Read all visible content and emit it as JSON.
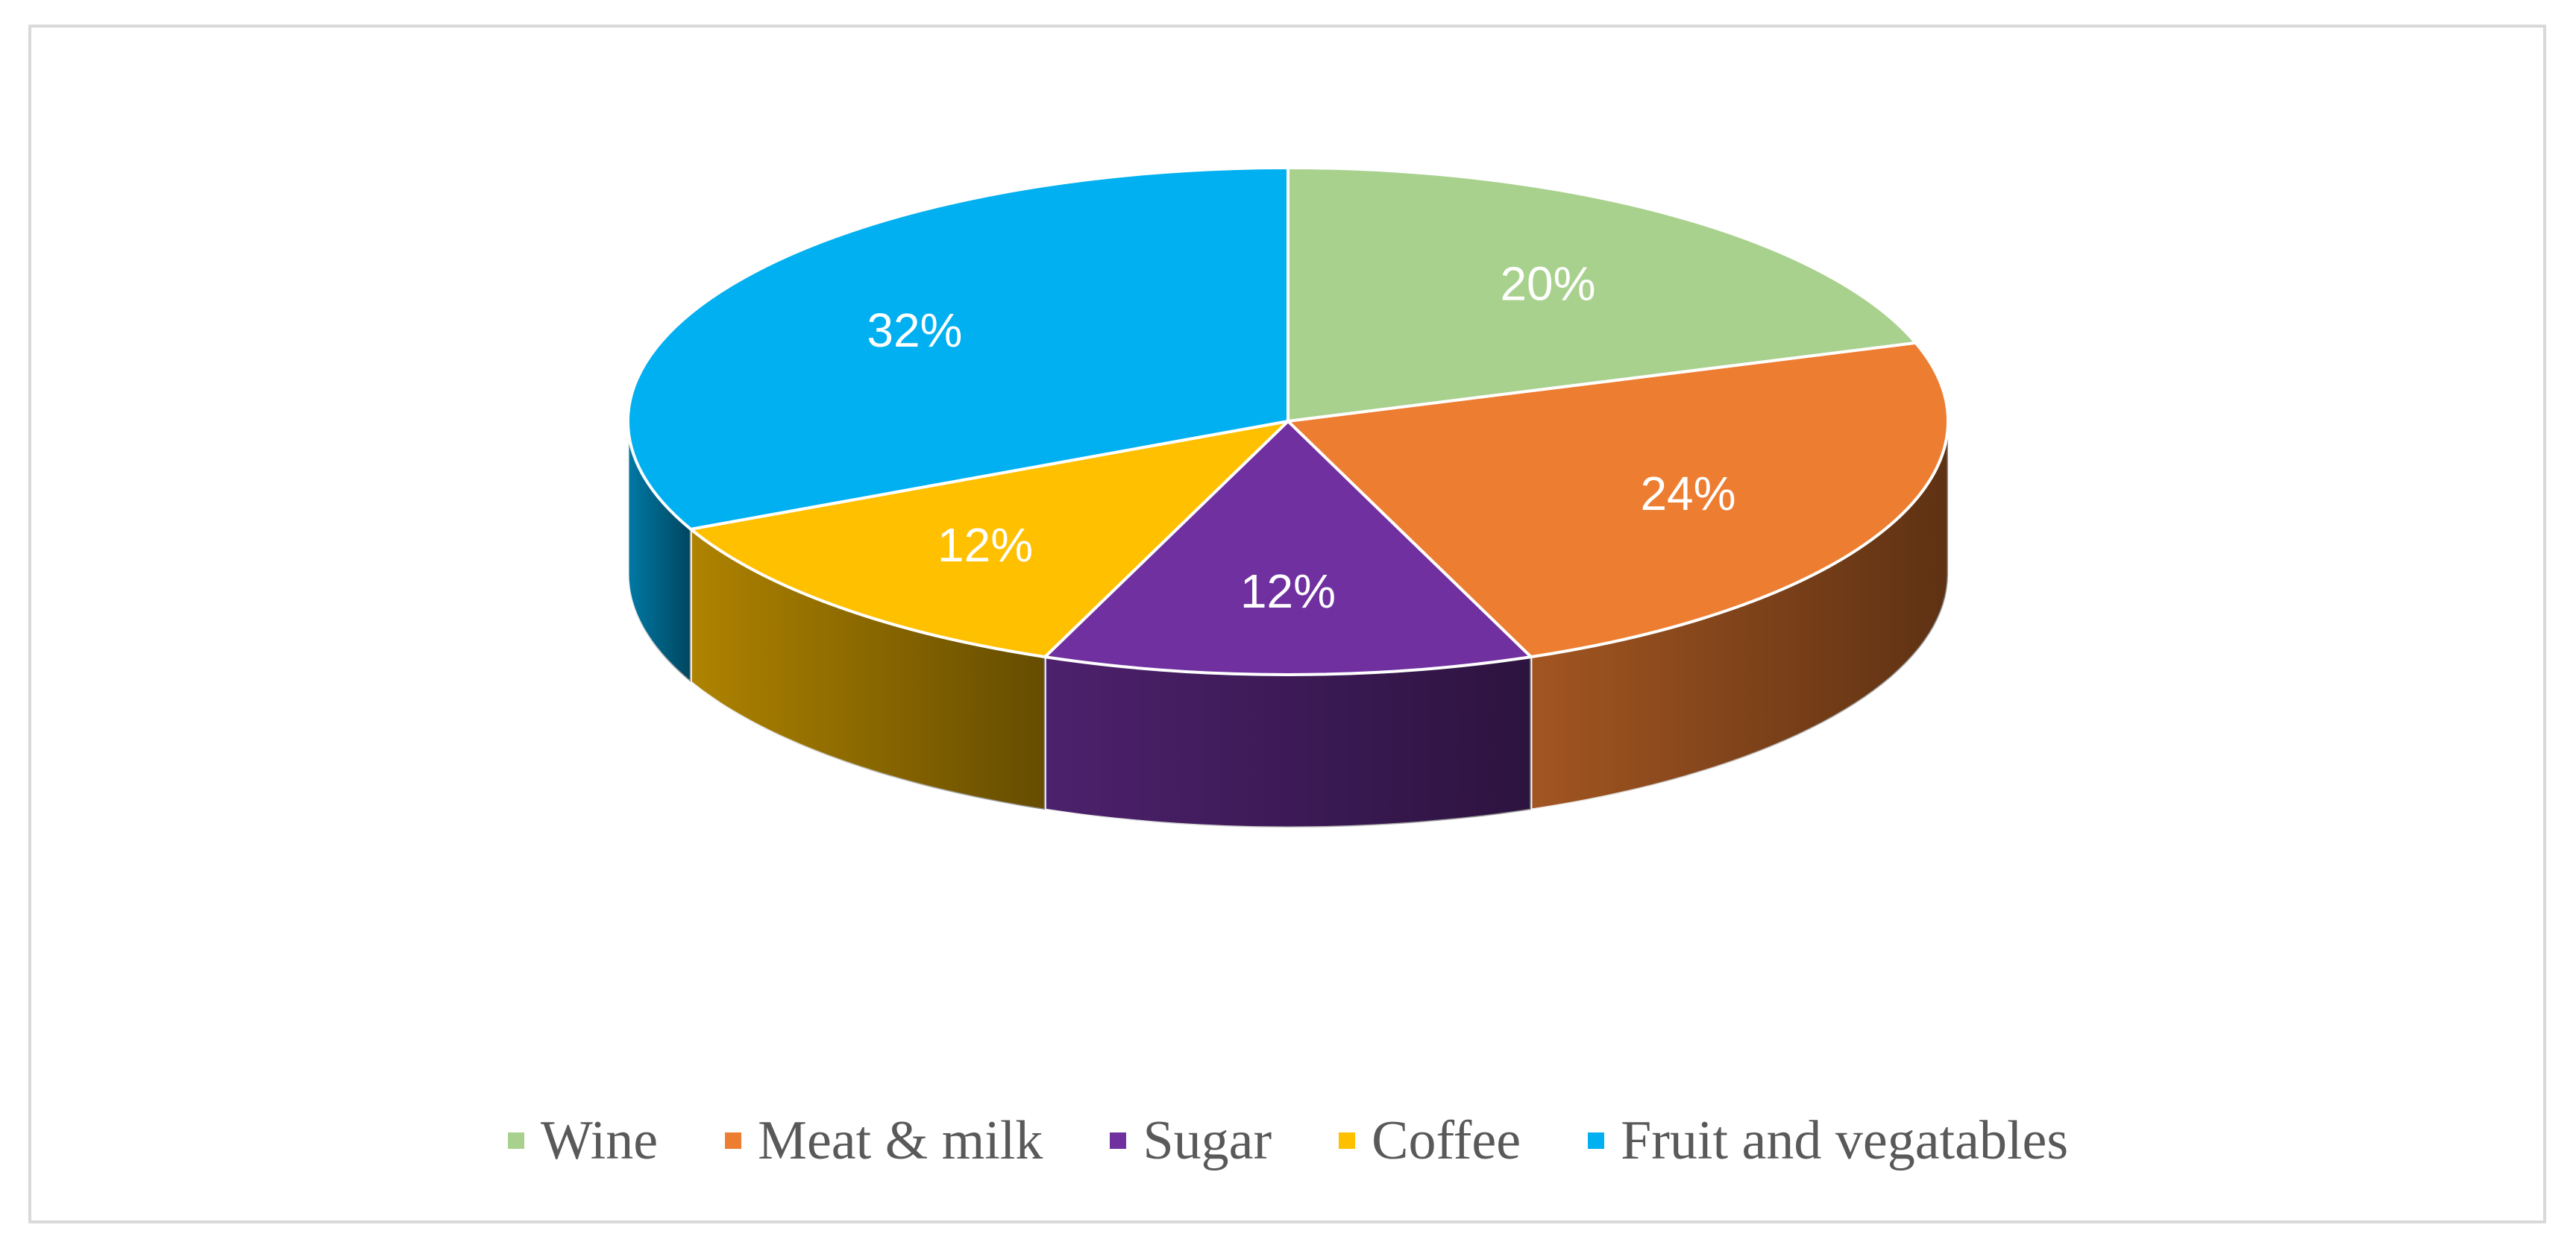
{
  "chart_data": {
    "type": "pie",
    "style": "3d",
    "categories": [
      "Wine",
      "Meat & milk",
      "Sugar",
      "Coffee",
      "Fruit and vegatables"
    ],
    "values": [
      20,
      24,
      12,
      12,
      32
    ],
    "labels": [
      "20%",
      "24%",
      "12%",
      "12%",
      "32%"
    ],
    "colors": [
      "#a9d18e",
      "#ed7d31",
      "#7030a0",
      "#ffc000",
      "#00b0f0"
    ],
    "legend_position": "bottom"
  }
}
